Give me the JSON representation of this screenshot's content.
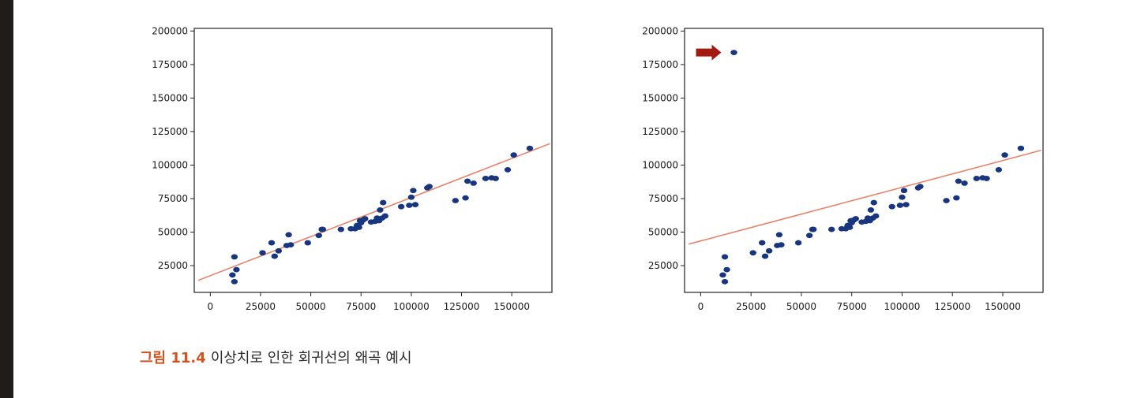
{
  "caption": {
    "figure_label": "그림 11.4",
    "text": "이상치로 인한 회귀선의 왜곡 예시"
  },
  "colors": {
    "points": "#17367f",
    "regression_line": "#e8836a",
    "arrow": "#a31a12",
    "caption_label": "#d2531e"
  },
  "chart_data": [
    {
      "type": "scatter",
      "title": "",
      "xlabel": "",
      "ylabel": "",
      "xlim": [
        -8000,
        170000
      ],
      "ylim": [
        5000,
        202000
      ],
      "xticks": [
        0,
        25000,
        50000,
        75000,
        100000,
        125000,
        150000
      ],
      "yticks": [
        25000,
        50000,
        75000,
        100000,
        125000,
        150000,
        175000,
        200000
      ],
      "grid": false,
      "points": [
        [
          11000,
          18000
        ],
        [
          12000,
          13000
        ],
        [
          12000,
          31500
        ],
        [
          13000,
          22000
        ],
        [
          26000,
          34500
        ],
        [
          30500,
          42000
        ],
        [
          32000,
          32000
        ],
        [
          34000,
          36000
        ],
        [
          38000,
          40000
        ],
        [
          39000,
          48000
        ],
        [
          40000,
          40500
        ],
        [
          48500,
          42000
        ],
        [
          54000,
          47500
        ],
        [
          55500,
          52000
        ],
        [
          56000,
          52000
        ],
        [
          65000,
          52000
        ],
        [
          70000,
          52500
        ],
        [
          72000,
          52500
        ],
        [
          73000,
          55000
        ],
        [
          74000,
          53500
        ],
        [
          74500,
          58500
        ],
        [
          75000,
          57000
        ],
        [
          76000,
          59000
        ],
        [
          77000,
          60000
        ],
        [
          80000,
          57500
        ],
        [
          82000,
          58000
        ],
        [
          83000,
          60500
        ],
        [
          84000,
          58500
        ],
        [
          84500,
          66500
        ],
        [
          85500,
          60500
        ],
        [
          86000,
          72000
        ],
        [
          87000,
          62000
        ],
        [
          95000,
          69000
        ],
        [
          99000,
          70000
        ],
        [
          100000,
          76000
        ],
        [
          101000,
          81000
        ],
        [
          102000,
          70500
        ],
        [
          108000,
          83000
        ],
        [
          109000,
          84000
        ],
        [
          122000,
          73500
        ],
        [
          127000,
          75500
        ],
        [
          128000,
          88000
        ],
        [
          131000,
          86500
        ],
        [
          137000,
          90000
        ],
        [
          140000,
          90500
        ],
        [
          142000,
          90000
        ],
        [
          148000,
          96500
        ],
        [
          151000,
          107500
        ],
        [
          159000,
          112500
        ]
      ],
      "regression_line": {
        "x": [
          -6000,
          169000
        ],
        "y": [
          14000,
          116000
        ]
      }
    },
    {
      "type": "scatter",
      "title": "",
      "xlabel": "",
      "ylabel": "",
      "xlim": [
        -8000,
        170000
      ],
      "ylim": [
        5000,
        202000
      ],
      "xticks": [
        0,
        25000,
        50000,
        75000,
        100000,
        125000,
        150000
      ],
      "yticks": [
        25000,
        50000,
        75000,
        100000,
        125000,
        150000,
        175000,
        200000
      ],
      "grid": false,
      "points": [
        [
          11000,
          18000
        ],
        [
          12000,
          13000
        ],
        [
          12000,
          31500
        ],
        [
          13000,
          22000
        ],
        [
          26000,
          34500
        ],
        [
          30500,
          42000
        ],
        [
          32000,
          32000
        ],
        [
          34000,
          36000
        ],
        [
          38000,
          40000
        ],
        [
          39000,
          48000
        ],
        [
          40000,
          40500
        ],
        [
          48500,
          42000
        ],
        [
          54000,
          47500
        ],
        [
          55500,
          52000
        ],
        [
          56000,
          52000
        ],
        [
          65000,
          52000
        ],
        [
          70000,
          52500
        ],
        [
          72000,
          52500
        ],
        [
          73000,
          55000
        ],
        [
          74000,
          53500
        ],
        [
          74500,
          58500
        ],
        [
          75000,
          57000
        ],
        [
          76000,
          59000
        ],
        [
          77000,
          60000
        ],
        [
          80000,
          57500
        ],
        [
          82000,
          58000
        ],
        [
          83000,
          60500
        ],
        [
          84000,
          58500
        ],
        [
          84500,
          66500
        ],
        [
          85500,
          60500
        ],
        [
          86000,
          72000
        ],
        [
          87000,
          62000
        ],
        [
          95000,
          69000
        ],
        [
          99000,
          70000
        ],
        [
          100000,
          76000
        ],
        [
          101000,
          81000
        ],
        [
          102000,
          70500
        ],
        [
          108000,
          83000
        ],
        [
          109000,
          84000
        ],
        [
          122000,
          73500
        ],
        [
          127000,
          75500
        ],
        [
          128000,
          88000
        ],
        [
          131000,
          86500
        ],
        [
          137000,
          90000
        ],
        [
          140000,
          90500
        ],
        [
          142000,
          90000
        ],
        [
          148000,
          96500
        ],
        [
          151000,
          107500
        ],
        [
          159000,
          112500
        ],
        [
          16500,
          184000
        ]
      ],
      "outlier": [
        16500,
        184000
      ],
      "regression_line": {
        "x": [
          -6000,
          169000
        ],
        "y": [
          41000,
          111000
        ]
      }
    }
  ]
}
